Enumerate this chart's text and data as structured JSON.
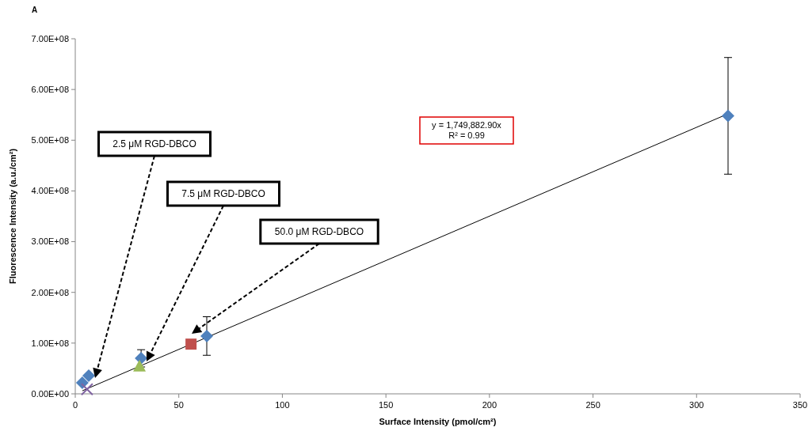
{
  "chart_data": {
    "type": "scatter",
    "xlabel": "Surface Intensity (pmol/cm²)",
    "ylabel": "Fluorescence Intensity (a.u./cm²)",
    "xlim": [
      0,
      350
    ],
    "xticks": [
      0,
      50,
      100,
      150,
      200,
      250,
      300,
      350
    ],
    "ylim": [
      0,
      700000000
    ],
    "yticks": [
      {
        "value": 0,
        "label": "0.00E+00"
      },
      {
        "value": 100000000,
        "label": "1.00E+08"
      },
      {
        "value": 200000000,
        "label": "2.00E+08"
      },
      {
        "value": 300000000,
        "label": "3.00E+08"
      },
      {
        "value": 400000000,
        "label": "4.00E+08"
      },
      {
        "value": 500000000,
        "label": "5.00E+08"
      },
      {
        "value": 600000000,
        "label": "6.00E+08"
      },
      {
        "value": 700000000,
        "label": "7.00E+08"
      }
    ],
    "grid": false,
    "series": [
      {
        "type": "line",
        "color": "#000000",
        "marker": "none",
        "x": [
          3.4,
          315.2
        ],
        "values": [
          6000000,
          552000000
        ]
      },
      {
        "color": "#4f81bd",
        "marker": "diamond",
        "x": [
          3.4,
          6.5,
          31.8,
          63.5,
          315.2
        ],
        "values": [
          22000000,
          36000000,
          70000000,
          114000000,
          548000000
        ],
        "errors": [
          null,
          null,
          17000000,
          38000000,
          115000000
        ]
      },
      {
        "color": "#9bbb59",
        "marker": "triangle",
        "x": [
          31
        ],
        "values": [
          55000000
        ]
      },
      {
        "color": "#8064a2",
        "marker": "cross",
        "x": [
          5.7
        ],
        "values": [
          9000000
        ]
      },
      {
        "color": "#c0504d",
        "marker": "square",
        "x": [
          55.9
        ],
        "values": [
          98000000
        ]
      }
    ],
    "annotations": [
      "A",
      "2.5 μM RGD-DBCO",
      "7.5 μM RGD-DBCO",
      "50.0 μM RGD-DBCO",
      "y = 1,749,882.90x\nR² = 0.99"
    ]
  }
}
